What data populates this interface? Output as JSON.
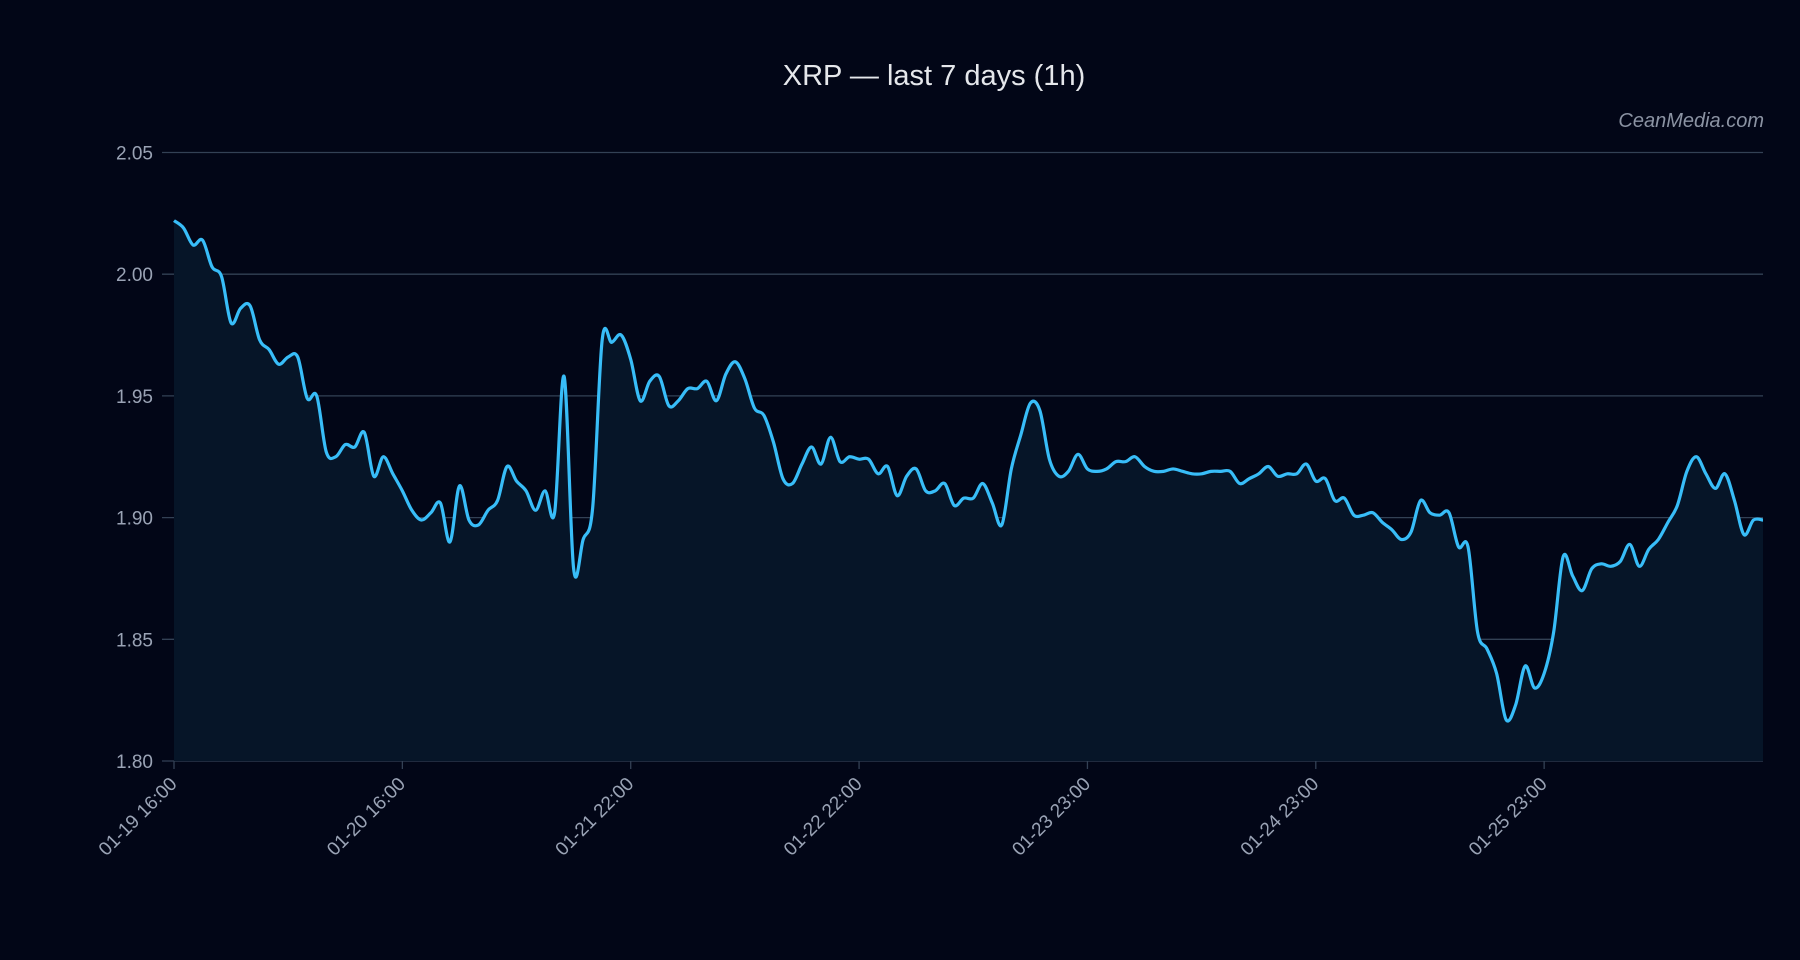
{
  "chart_data": {
    "type": "area",
    "title": "XRP — last 7 days (1h)",
    "watermark": "CeanMedia.com",
    "xlabel": "",
    "ylabel": "",
    "ylim": [
      1.8,
      2.05
    ],
    "yticks": [
      "1.80",
      "1.85",
      "1.90",
      "1.95",
      "2.00",
      "2.05"
    ],
    "xtick_labels": [
      {
        "index": 0,
        "label": "01-19 16:00"
      },
      {
        "index": 24,
        "label": "01-20 16:00"
      },
      {
        "index": 48,
        "label": "01-21 22:00"
      },
      {
        "index": 72,
        "label": "01-22 22:00"
      },
      {
        "index": 96,
        "label": "01-23 23:00"
      },
      {
        "index": 120,
        "label": "01-24 23:00"
      },
      {
        "index": 144,
        "label": "01-25 23:00"
      }
    ],
    "grid": true,
    "colors": {
      "line": "#38bdf8",
      "fill": "#061528",
      "background": "#020617",
      "grid": "#334155"
    },
    "values": [
      2.022,
      2.019,
      2.012,
      2.014,
      2.003,
      1.999,
      1.98,
      1.986,
      1.987,
      1.973,
      1.969,
      1.963,
      1.966,
      1.966,
      1.949,
      1.95,
      1.927,
      1.925,
      1.93,
      1.929,
      1.935,
      1.917,
      1.925,
      1.918,
      1.911,
      1.903,
      1.899,
      1.902,
      1.906,
      1.89,
      1.913,
      1.899,
      1.897,
      1.903,
      1.907,
      1.921,
      1.915,
      1.911,
      1.903,
      1.911,
      1.902,
      1.958,
      1.879,
      1.891,
      1.904,
      1.973,
      1.972,
      1.975,
      1.965,
      1.948,
      1.956,
      1.958,
      1.946,
      1.948,
      1.953,
      1.953,
      1.956,
      1.948,
      1.959,
      1.964,
      1.957,
      1.945,
      1.942,
      1.931,
      1.916,
      1.914,
      1.922,
      1.929,
      1.922,
      1.933,
      1.923,
      1.925,
      1.924,
      1.924,
      1.918,
      1.921,
      1.909,
      1.917,
      1.92,
      1.911,
      1.911,
      1.914,
      1.905,
      1.908,
      1.908,
      1.914,
      1.906,
      1.897,
      1.92,
      1.934,
      1.947,
      1.944,
      1.924,
      1.917,
      1.919,
      1.926,
      1.92,
      1.919,
      1.92,
      1.923,
      1.923,
      1.925,
      1.921,
      1.919,
      1.919,
      1.92,
      1.919,
      1.918,
      1.918,
      1.919,
      1.919,
      1.919,
      1.914,
      1.916,
      1.918,
      1.921,
      1.917,
      1.918,
      1.918,
      1.922,
      1.915,
      1.916,
      1.907,
      1.908,
      1.901,
      1.901,
      1.902,
      1.898,
      1.895,
      1.891,
      1.894,
      1.907,
      1.902,
      1.901,
      1.902,
      1.888,
      1.888,
      1.853,
      1.846,
      1.836,
      1.817,
      1.823,
      1.839,
      1.83,
      1.836,
      1.853,
      1.884,
      1.876,
      1.87,
      1.879,
      1.881,
      1.88,
      1.882,
      1.889,
      1.88,
      1.887,
      1.891,
      1.898,
      1.905,
      1.919,
      1.925,
      1.918,
      1.912,
      1.918,
      1.907,
      1.893,
      1.899,
      1.899
    ]
  }
}
